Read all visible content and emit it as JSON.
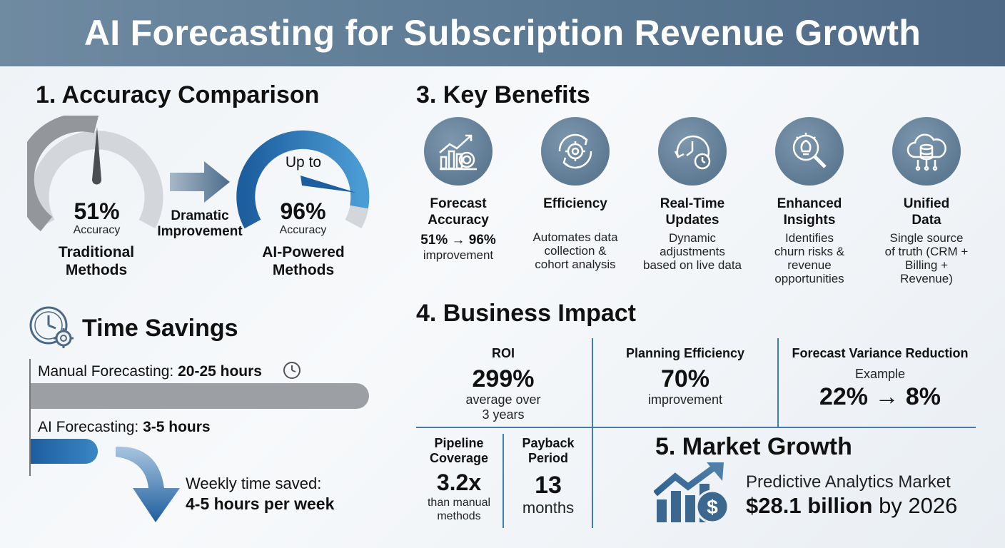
{
  "title": "AI Forecasting for Subscription Revenue Growth",
  "accuracy": {
    "heading": "1. Accuracy Comparison",
    "traditional": {
      "value": "51%",
      "sub": "Accuracy",
      "label_line1": "Traditional",
      "label_line2": "Methods",
      "fill": 0.51
    },
    "arrow_label_line1": "Dramatic",
    "arrow_label_line2": "Improvement",
    "ai": {
      "prefix": "Up to",
      "value": "96%",
      "sub": "Accuracy",
      "label_line1": "AI-Powered",
      "label_line2": "Methods",
      "fill": 0.96
    }
  },
  "time_savings": {
    "heading": "Time Savings",
    "manual_label": "Manual Forecasting: ",
    "manual_value": "20-25 hours",
    "ai_label": "AI Forecasting: ",
    "ai_value": "3-5 hours",
    "weekly_line1": "Weekly time saved:",
    "weekly_line2": "4-5 hours per week"
  },
  "benefits": {
    "heading": "3. Key Benefits",
    "items": [
      {
        "icon": "growth-chart-target-icon",
        "title_line1": "Forecast",
        "title_line2": "Accuracy",
        "desc_line1": "51% → 96%",
        "desc_line2": "improvement"
      },
      {
        "icon": "gear-cycle-icon",
        "title_line1": "Efficiency",
        "title_line2": "",
        "desc_line1": "Automates data",
        "desc_line2": "collection &",
        "desc_line3": "cohort analysis"
      },
      {
        "icon": "clock-refresh-icon",
        "title_line1": "Real-Time",
        "title_line2": "Updates",
        "desc_line1": "Dynamic",
        "desc_line2": "adjustments",
        "desc_line3": "based on live data"
      },
      {
        "icon": "lightbulb-magnifier-icon",
        "title_line1": "Enhanced",
        "title_line2": "Insights",
        "desc_line1": "Identifies",
        "desc_line2": "churn risks &",
        "desc_line3": "revenue",
        "desc_line4": "opportunities"
      },
      {
        "icon": "cloud-database-icon",
        "title_line1": "Unified",
        "title_line2": "Data",
        "desc_line1": "Single source",
        "desc_line2": "of truth (CRM +",
        "desc_line3": "Billing +",
        "desc_line4": "Revenue)"
      }
    ]
  },
  "impact": {
    "heading": "4. Business Impact",
    "roi": {
      "title": "ROI",
      "value": "299%",
      "sub_line1": "average over",
      "sub_line2": "3 years"
    },
    "planning": {
      "title": "Planning Efficiency",
      "value": "70%",
      "sub": "improvement"
    },
    "variance": {
      "title": "Forecast Variance Reduction",
      "sub": "Example",
      "value": "22% → 8%"
    },
    "pipeline": {
      "title_line1": "Pipeline",
      "title_line2": "Coverage",
      "value": "3.2x",
      "sub_line1": "than manual",
      "sub_line2": "methods"
    },
    "payback": {
      "title_line1": "Payback",
      "title_line2": "Period",
      "value": "13",
      "sub": "months"
    }
  },
  "market": {
    "heading": "5. Market Growth",
    "label": "Predictive Analytics Market",
    "value": "$28.1 billion",
    "suffix": " by 2026"
  },
  "colors": {
    "accent": "#2f6fae",
    "accent_light": "#4a9ad3",
    "gray": "#9aa0a6",
    "header": "#5d7b95"
  }
}
